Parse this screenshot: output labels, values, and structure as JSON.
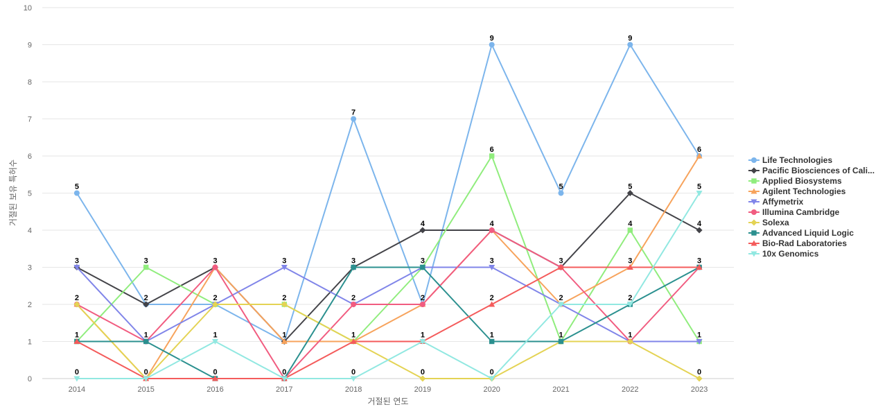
{
  "chart_data": {
    "type": "line",
    "title": "",
    "xlabel": "거절된 연도",
    "ylabel": "거절된 보유 특허수",
    "ylim": [
      0,
      10
    ],
    "yticks": [
      0,
      1,
      2,
      3,
      4,
      5,
      6,
      7,
      8,
      9,
      10
    ],
    "categories": [
      "2014",
      "2015",
      "2016",
      "2017",
      "2018",
      "2019",
      "2020",
      "2021",
      "2022",
      "2023"
    ],
    "grid": true,
    "legend_position": "right",
    "series": [
      {
        "name": "Life Technologies",
        "legend_label": "Life Technologies",
        "color": "#7cb5ec",
        "marker": "circle",
        "values": [
          5,
          2,
          2,
          1,
          7,
          2,
          9,
          5,
          9,
          6
        ]
      },
      {
        "name": "Pacific Biosciences of California",
        "legend_label": "Pacific Biosciences of Cali...",
        "color": "#434348",
        "marker": "diamond",
        "values": [
          3,
          2,
          3,
          1,
          3,
          4,
          4,
          3,
          5,
          4
        ]
      },
      {
        "name": "Applied Biosystems",
        "legend_label": "Applied Biosystems",
        "color": "#90ed7d",
        "marker": "square",
        "values": [
          1,
          3,
          2,
          2,
          1,
          3,
          6,
          1,
          4,
          1
        ]
      },
      {
        "name": "Agilent Technologies",
        "legend_label": "Agilent Technologies",
        "color": "#f7a35c",
        "marker": "triangle",
        "values": [
          2,
          0,
          3,
          1,
          1,
          2,
          4,
          2,
          3,
          6
        ]
      },
      {
        "name": "Affymetrix",
        "legend_label": "Affymetrix",
        "color": "#8085e9",
        "marker": "triangle-down",
        "values": [
          3,
          1,
          2,
          3,
          2,
          3,
          3,
          2,
          1,
          1
        ]
      },
      {
        "name": "Illumina Cambridge",
        "legend_label": "Illumina Cambridge",
        "color": "#f15c80",
        "marker": "circle",
        "values": [
          2,
          1,
          3,
          0,
          2,
          2,
          4,
          3,
          1,
          3
        ]
      },
      {
        "name": "Solexa",
        "legend_label": "Solexa",
        "color": "#e4d354",
        "marker": "diamond",
        "values": [
          2,
          0,
          2,
          2,
          1,
          0,
          0,
          1,
          1,
          0
        ]
      },
      {
        "name": "Advanced Liquid Logic",
        "legend_label": "Advanced Liquid Logic",
        "color": "#2b908f",
        "marker": "square",
        "values": [
          1,
          1,
          0,
          0,
          3,
          3,
          1,
          1,
          2,
          3
        ]
      },
      {
        "name": "Bio-Rad Laboratories",
        "legend_label": "Bio-Rad Laboratories",
        "color": "#f45b5b",
        "marker": "triangle",
        "values": [
          1,
          0,
          0,
          0,
          1,
          1,
          2,
          3,
          3,
          3
        ]
      },
      {
        "name": "10x Genomics",
        "legend_label": "10x Genomics",
        "color": "#91e8e1",
        "marker": "triangle-down",
        "values": [
          0,
          0,
          1,
          0,
          0,
          1,
          0,
          2,
          2,
          5
        ]
      }
    ],
    "data_labels": {
      "series": "Life Technologies",
      "top": [
        5,
        3,
        3,
        3,
        7,
        4,
        9,
        5,
        9,
        6
      ],
      "row_3": [
        3,
        null,
        null,
        null,
        3,
        3,
        4,
        3,
        5,
        5
      ],
      "row_2": [
        2,
        2,
        2,
        2,
        2,
        2,
        3,
        3,
        4,
        4
      ],
      "row_1": [
        1,
        1,
        2,
        1,
        1,
        2,
        2,
        2,
        3,
        3
      ],
      "row_0": [
        null,
        null,
        1,
        null,
        null,
        1,
        1,
        1,
        2,
        3
      ]
    }
  }
}
